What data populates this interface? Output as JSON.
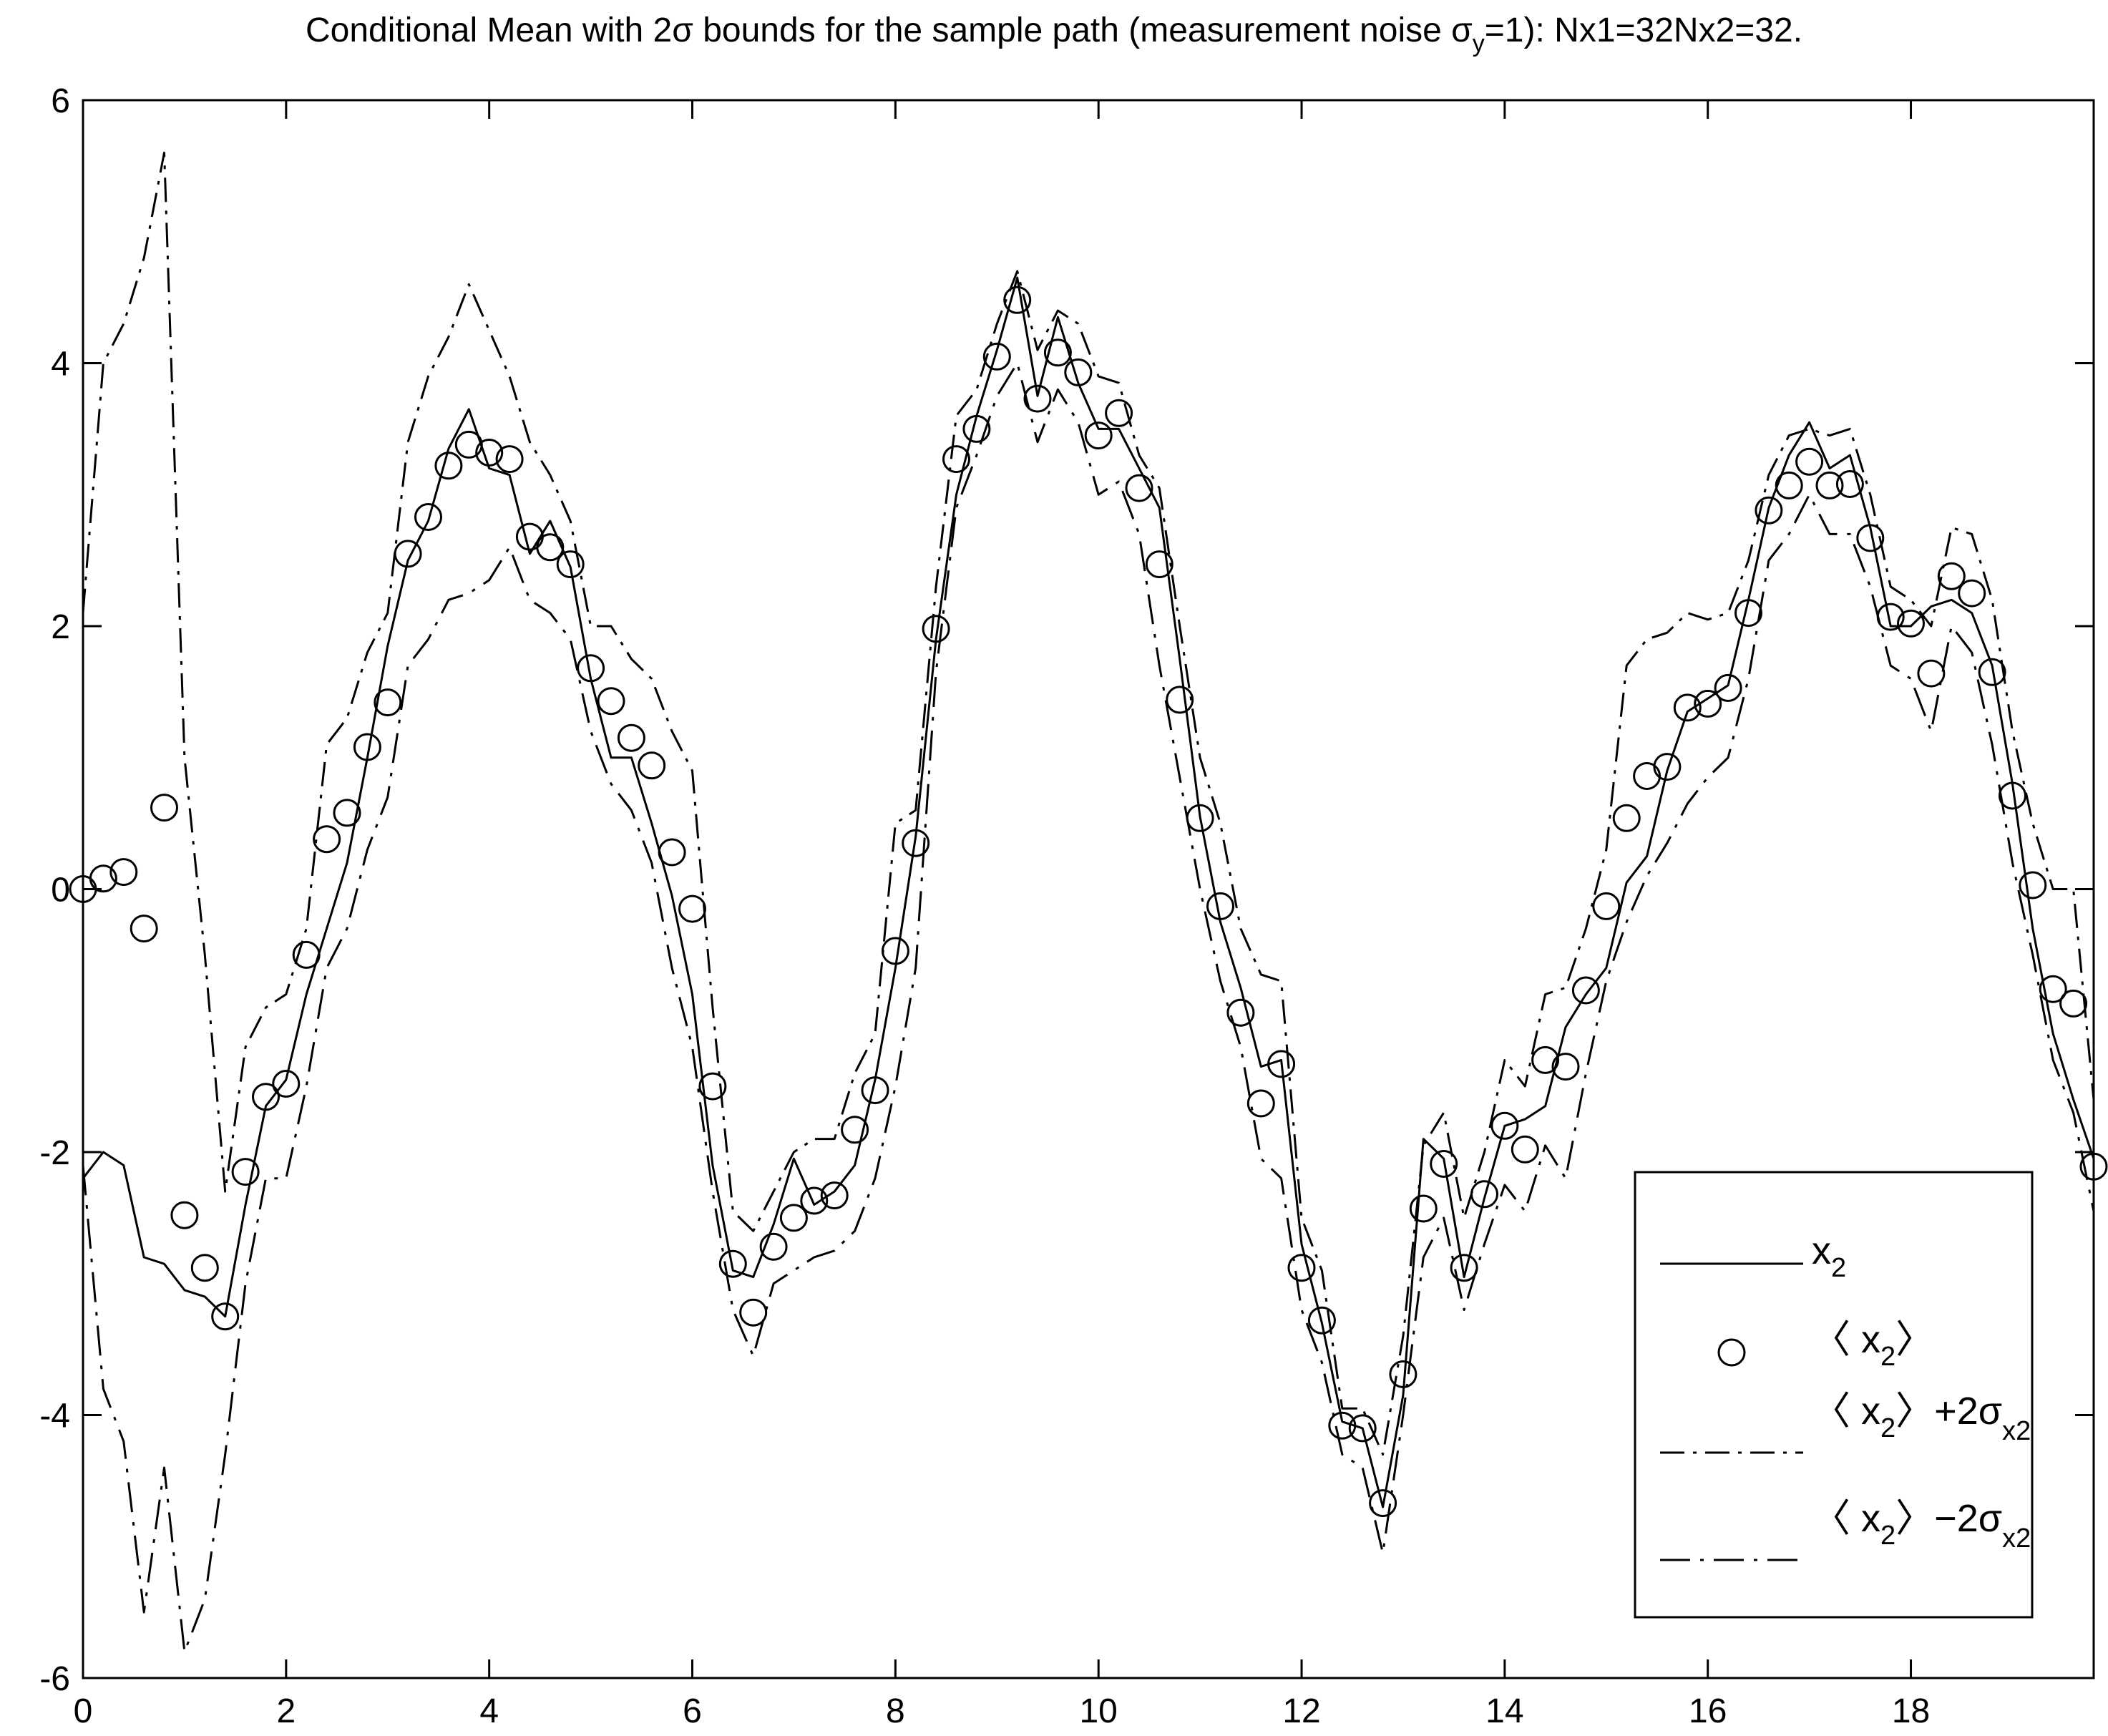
{
  "chart_data": {
    "type": "line",
    "title": "Conditional Mean with 2σ bounds for the sample path (measurement noise σy=1): Nx1=32Nx2=32.",
    "title_parts": {
      "main": "Conditional Mean with 2σ bounds for the sample path (measurement noise σ",
      "sub": "y",
      "rest": "=1): Nx1=32Nx2=32."
    },
    "xlabel": "",
    "ylabel": "",
    "xlim": [
      0,
      19.8
    ],
    "ylim": [
      -6,
      6
    ],
    "xticks": [
      0,
      2,
      4,
      6,
      8,
      10,
      12,
      14,
      16,
      18
    ],
    "yticks": [
      -6,
      -4,
      -2,
      0,
      2,
      4,
      6
    ],
    "xtick_labels": [
      "0",
      "2",
      "4",
      "6",
      "8",
      "10",
      "12",
      "14",
      "16",
      "18"
    ],
    "ytick_labels": [
      "-6",
      "-4",
      "-2",
      "0",
      "2",
      "4",
      "6"
    ],
    "grid": false,
    "legend_position": "bottom-right",
    "x": [
      0,
      0.2,
      0.4,
      0.6,
      0.8,
      1.0,
      1.2,
      1.4,
      1.6,
      1.8,
      2.0,
      2.2,
      2.4,
      2.6,
      2.8,
      3.0,
      3.2,
      3.4,
      3.6,
      3.8,
      4.0,
      4.2,
      4.4,
      4.6,
      4.8,
      5.0,
      5.2,
      5.4,
      5.6,
      5.8,
      6.0,
      6.2,
      6.4,
      6.6,
      6.8,
      7.0,
      7.2,
      7.4,
      7.6,
      7.8,
      8.0,
      8.2,
      8.4,
      8.6,
      8.8,
      9.0,
      9.2,
      9.4,
      9.6,
      9.8,
      10.0,
      10.2,
      10.4,
      10.6,
      10.8,
      11.0,
      11.2,
      11.4,
      11.6,
      11.8,
      12.0,
      12.2,
      12.4,
      12.6,
      12.8,
      13.0,
      13.2,
      13.4,
      13.6,
      13.8,
      14.0,
      14.2,
      14.4,
      14.6,
      14.8,
      15.0,
      15.2,
      15.4,
      15.6,
      15.8,
      16.0,
      16.2,
      16.4,
      16.6,
      16.8,
      17.0,
      17.2,
      17.4,
      17.6,
      17.8,
      18.0,
      18.2,
      18.4,
      18.6,
      18.8,
      19.0,
      19.2,
      19.4,
      19.6,
      19.8
    ],
    "series": [
      {
        "name": "x2",
        "style": "solid",
        "values": [
          -2.2,
          -2.0,
          -2.1,
          -2.8,
          -2.85,
          -3.05,
          -3.1,
          -3.25,
          -2.4,
          -1.65,
          -1.45,
          -0.8,
          -0.3,
          0.2,
          1.0,
          1.85,
          2.5,
          2.8,
          3.35,
          3.65,
          3.2,
          3.15,
          2.55,
          2.8,
          2.45,
          1.6,
          1.0,
          1.0,
          0.5,
          -0.05,
          -0.8,
          -2.1,
          -2.9,
          -2.95,
          -2.55,
          -2.05,
          -2.4,
          -2.3,
          -2.1,
          -1.45,
          -0.6,
          0.4,
          1.9,
          3.0,
          3.6,
          4.1,
          4.65,
          3.75,
          4.35,
          3.85,
          3.5,
          3.5,
          3.2,
          2.9,
          1.75,
          0.55,
          -0.25,
          -0.75,
          -1.35,
          -1.3,
          -2.7,
          -3.3,
          -4.05,
          -4.1,
          -4.7,
          -3.85,
          -1.9,
          -2.05,
          -2.95,
          -2.35,
          -1.8,
          -1.75,
          -1.65,
          -1.05,
          -0.8,
          -0.6,
          0.05,
          0.25,
          0.9,
          1.35,
          1.45,
          1.55,
          2.2,
          2.9,
          3.3,
          3.55,
          3.2,
          3.3,
          2.75,
          2.0,
          2.0,
          2.15,
          2.2,
          2.1,
          1.7,
          0.8,
          -0.3,
          -1.1,
          -1.6,
          -2.05
        ]
      },
      {
        "name": "⟨ x2⟩",
        "style": "circle",
        "values": [
          0.0,
          0.08,
          0.13,
          -0.3,
          0.62,
          -2.48,
          -2.88,
          -3.25,
          -2.15,
          -1.58,
          -1.48,
          -0.5,
          0.38,
          0.58,
          1.08,
          1.42,
          2.55,
          2.83,
          3.22,
          3.38,
          3.32,
          3.27,
          2.68,
          2.6,
          2.47,
          1.68,
          1.43,
          1.15,
          0.94,
          0.28,
          -0.15,
          -1.5,
          -2.85,
          -3.22,
          -2.72,
          -2.5,
          -2.37,
          -2.33,
          -1.83,
          -1.53,
          -0.47,
          0.35,
          1.98,
          3.27,
          3.5,
          4.05,
          4.48,
          3.73,
          4.08,
          3.93,
          3.45,
          3.62,
          3.05,
          2.47,
          1.44,
          0.54,
          -0.13,
          -0.94,
          -1.63,
          -1.33,
          -2.88,
          -3.28,
          -4.08,
          -4.1,
          -4.67,
          -3.69,
          -2.43,
          -2.09,
          -2.88,
          -2.32,
          -1.8,
          -1.98,
          -1.3,
          -1.35,
          -0.77,
          -0.13,
          0.54,
          0.86,
          0.93,
          1.38,
          1.41,
          1.53,
          2.1,
          2.88,
          3.07,
          3.25,
          3.07,
          3.08,
          2.67,
          2.07,
          2.02,
          1.64,
          2.38,
          2.25,
          1.65,
          0.71,
          0.03,
          -0.76,
          -0.87,
          -2.11
        ]
      },
      {
        "name": "⟨ x2⟩+2σx2",
        "style": "dashdot",
        "values": [
          2.1,
          4.0,
          4.3,
          4.8,
          5.6,
          1.0,
          -0.5,
          -2.3,
          -1.2,
          -0.9,
          -0.8,
          -0.3,
          1.1,
          1.3,
          1.8,
          2.1,
          3.4,
          3.9,
          4.2,
          4.6,
          4.25,
          3.9,
          3.4,
          3.15,
          2.8,
          2.0,
          2.0,
          1.75,
          1.6,
          1.2,
          0.9,
          -0.9,
          -2.45,
          -2.6,
          -2.3,
          -2.0,
          -1.9,
          -1.9,
          -1.4,
          -1.1,
          0.5,
          0.6,
          2.3,
          3.6,
          3.8,
          4.3,
          4.7,
          4.1,
          4.4,
          4.3,
          3.9,
          3.85,
          3.3,
          3.05,
          2.0,
          1.0,
          0.5,
          -0.3,
          -0.65,
          -0.7,
          -2.5,
          -2.9,
          -3.95,
          -3.95,
          -4.3,
          -3.4,
          -1.95,
          -1.7,
          -2.5,
          -2.0,
          -1.3,
          -1.5,
          -0.8,
          -0.75,
          -0.3,
          0.3,
          1.7,
          1.9,
          1.95,
          2.1,
          2.05,
          2.1,
          2.5,
          3.15,
          3.45,
          3.5,
          3.45,
          3.5,
          3.0,
          2.3,
          2.2,
          2.0,
          2.75,
          2.7,
          2.2,
          1.2,
          0.5,
          0.0,
          0.0,
          -1.6
        ]
      },
      {
        "name": "⟨ x2⟩−2σx2",
        "style": "dashed",
        "values": [
          -2.1,
          -3.8,
          -4.2,
          -5.5,
          -4.4,
          -5.8,
          -5.4,
          -4.3,
          -3.0,
          -2.2,
          -2.2,
          -1.5,
          -0.6,
          -0.3,
          0.3,
          0.7,
          1.7,
          1.9,
          2.2,
          2.25,
          2.35,
          2.6,
          2.2,
          2.1,
          1.9,
          1.2,
          0.8,
          0.6,
          0.2,
          -0.6,
          -1.2,
          -2.3,
          -3.2,
          -3.55,
          -3.0,
          -2.9,
          -2.8,
          -2.75,
          -2.6,
          -2.2,
          -1.5,
          -0.6,
          1.65,
          2.9,
          3.3,
          3.75,
          4.0,
          3.4,
          3.8,
          3.55,
          3.0,
          3.1,
          2.7,
          1.7,
          0.85,
          0.0,
          -0.7,
          -1.2,
          -2.05,
          -2.2,
          -3.2,
          -3.6,
          -4.3,
          -4.4,
          -5.05,
          -4.0,
          -2.8,
          -2.5,
          -3.2,
          -2.7,
          -2.25,
          -2.45,
          -1.95,
          -2.2,
          -1.4,
          -0.7,
          -0.25,
          0.1,
          0.35,
          0.65,
          0.85,
          1.0,
          1.6,
          2.5,
          2.7,
          3.0,
          2.7,
          2.7,
          2.3,
          1.7,
          1.6,
          1.2,
          2.0,
          1.8,
          1.1,
          0.2,
          -0.5,
          -1.3,
          -1.7,
          -2.45
        ]
      }
    ],
    "legend": {
      "entries": [
        {
          "main": "x",
          "sub": "2",
          "rest": "",
          "sub2": ""
        },
        {
          "main": "〈 x",
          "sub": "2",
          "rest": "〉",
          "sub2": ""
        },
        {
          "main": "〈 x",
          "sub": "2",
          "rest": "〉+2σ",
          "sub2": "x2"
        },
        {
          "main": "〈 x",
          "sub": "2",
          "rest": "〉−2σ",
          "sub2": "x2"
        }
      ]
    }
  }
}
